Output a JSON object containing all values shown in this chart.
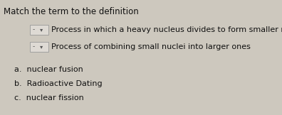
{
  "background_color": "#cdc8be",
  "title": "Match the term to the definition",
  "title_fontsize": 8.5,
  "title_color": "#111111",
  "row1_text": "Process in which a heavy nucleus divides to form smaller nuclei",
  "row2_text": "Process of combining small nuclei into larger ones",
  "row_fontsize": 8.0,
  "row_color": "#111111",
  "dropdown_label": "- ⌄",
  "options": [
    {
      "label": "a.  nuclear fusion"
    },
    {
      "label": "b.  Radioactive Dating"
    },
    {
      "label": "c.  nuclear fission"
    }
  ],
  "options_fontsize": 8.0,
  "options_color": "#111111",
  "figsize": [
    3.96,
    1.62
  ],
  "dpi": 100
}
